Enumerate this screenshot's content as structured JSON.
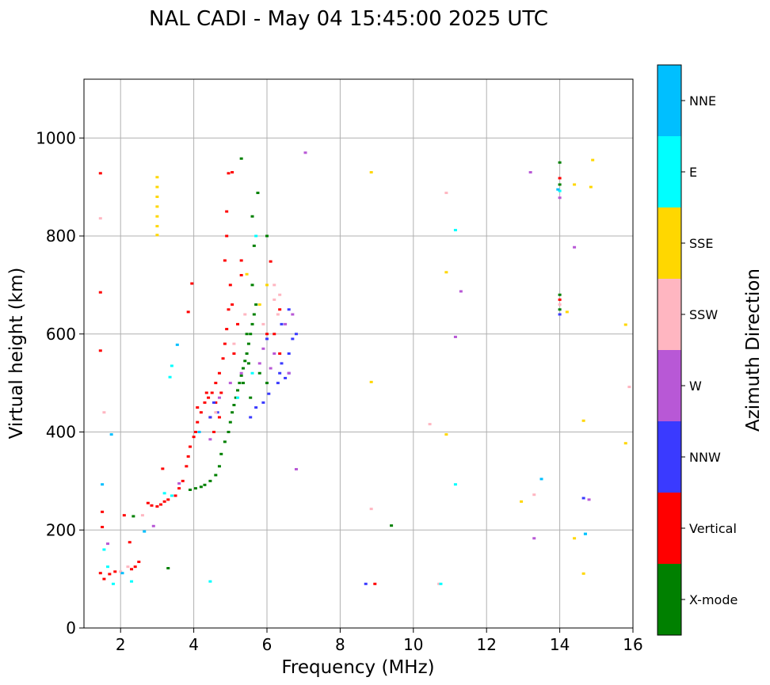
{
  "chart_data": {
    "type": "scatter",
    "title": "NAL CADI - May 04 15:45:00 2025 UTC",
    "xlabel": "Frequency (MHz)",
    "ylabel": "Virtual height (km)",
    "xlim": [
      1,
      16
    ],
    "ylim": [
      0,
      1120
    ],
    "xticks": [
      2,
      4,
      6,
      8,
      10,
      12,
      14,
      16
    ],
    "yticks": [
      0,
      200,
      400,
      600,
      800,
      1000
    ],
    "grid": true,
    "colorbar": {
      "label": "Azimuth Direction",
      "categories": [
        {
          "name": "X-mode",
          "color": "#008000"
        },
        {
          "name": "Vertical",
          "color": "#ff0000"
        },
        {
          "name": "NNW",
          "color": "#3a3aff"
        },
        {
          "name": "W",
          "color": "#b858d6"
        },
        {
          "name": "SSW",
          "color": "#ffb6c1"
        },
        {
          "name": "SSE",
          "color": "#ffd700"
        },
        {
          "name": "E",
          "color": "#00ffff"
        },
        {
          "name": "NNE",
          "color": "#00bfff"
        }
      ]
    },
    "series": [
      {
        "name": "X-mode",
        "color": "#008000",
        "points": [
          [
            3.3,
            122
          ],
          [
            3.9,
            282
          ],
          [
            4.05,
            285
          ],
          [
            4.2,
            288
          ],
          [
            4.3,
            292
          ],
          [
            4.45,
            300
          ],
          [
            4.6,
            312
          ],
          [
            4.7,
            330
          ],
          [
            4.75,
            355
          ],
          [
            4.85,
            380
          ],
          [
            4.95,
            400
          ],
          [
            5.0,
            420
          ],
          [
            5.05,
            440
          ],
          [
            5.1,
            455
          ],
          [
            5.15,
            470
          ],
          [
            5.2,
            485
          ],
          [
            5.25,
            500
          ],
          [
            5.3,
            515
          ],
          [
            5.35,
            530
          ],
          [
            5.4,
            545
          ],
          [
            5.45,
            560
          ],
          [
            5.5,
            580
          ],
          [
            5.55,
            600
          ],
          [
            5.6,
            620
          ],
          [
            5.65,
            640
          ],
          [
            5.7,
            660
          ],
          [
            5.45,
            600
          ],
          [
            5.5,
            540
          ],
          [
            5.6,
            700
          ],
          [
            5.65,
            780
          ],
          [
            5.6,
            840
          ],
          [
            5.75,
            888
          ],
          [
            6.0,
            800
          ],
          [
            5.3,
            958
          ],
          [
            6.0,
            500
          ],
          [
            5.55,
            470
          ],
          [
            5.8,
            520
          ],
          [
            5.35,
            500
          ],
          [
            9.4,
            209
          ],
          [
            2.35,
            228
          ],
          [
            14.0,
            950
          ],
          [
            14.0,
            905
          ],
          [
            14.0,
            650
          ],
          [
            14.0,
            680
          ]
        ]
      },
      {
        "name": "Vertical",
        "color": "#ff0000",
        "points": [
          [
            1.45,
            928
          ],
          [
            1.45,
            685
          ],
          [
            1.45,
            566
          ],
          [
            1.5,
            237
          ],
          [
            1.5,
            206
          ],
          [
            1.45,
            112
          ],
          [
            1.55,
            100
          ],
          [
            1.7,
            110
          ],
          [
            1.85,
            115
          ],
          [
            2.3,
            120
          ],
          [
            2.4,
            125
          ],
          [
            2.5,
            135
          ],
          [
            2.75,
            255
          ],
          [
            2.85,
            250
          ],
          [
            3.0,
            248
          ],
          [
            3.1,
            252
          ],
          [
            3.2,
            258
          ],
          [
            3.3,
            262
          ],
          [
            3.5,
            270
          ],
          [
            3.6,
            285
          ],
          [
            3.7,
            300
          ],
          [
            3.8,
            330
          ],
          [
            3.85,
            350
          ],
          [
            3.9,
            370
          ],
          [
            4.0,
            390
          ],
          [
            4.05,
            400
          ],
          [
            4.1,
            420
          ],
          [
            4.2,
            440
          ],
          [
            4.3,
            460
          ],
          [
            4.4,
            470
          ],
          [
            4.5,
            480
          ],
          [
            4.6,
            500
          ],
          [
            4.7,
            520
          ],
          [
            4.8,
            550
          ],
          [
            4.85,
            580
          ],
          [
            4.9,
            610
          ],
          [
            4.95,
            650
          ],
          [
            5.0,
            700
          ],
          [
            4.85,
            750
          ],
          [
            4.9,
            800
          ],
          [
            4.9,
            850
          ],
          [
            4.95,
            928
          ],
          [
            5.05,
            930
          ],
          [
            3.95,
            703
          ],
          [
            3.85,
            645
          ],
          [
            3.15,
            325
          ],
          [
            2.25,
            175
          ],
          [
            4.6,
            460
          ],
          [
            4.45,
            430
          ],
          [
            4.7,
            430
          ],
          [
            4.75,
            480
          ],
          [
            5.1,
            560
          ],
          [
            5.2,
            620
          ],
          [
            5.05,
            660
          ],
          [
            5.3,
            720
          ],
          [
            6.1,
            748
          ],
          [
            6.35,
            650
          ],
          [
            6.2,
            600
          ],
          [
            4.55,
            400
          ],
          [
            4.35,
            480
          ],
          [
            4.1,
            450
          ],
          [
            5.3,
            750
          ],
          [
            6.0,
            600
          ],
          [
            6.35,
            560
          ],
          [
            14.0,
            918
          ],
          [
            14.0,
            670
          ],
          [
            8.95,
            90
          ],
          [
            2.1,
            230
          ]
        ]
      },
      {
        "name": "NNW",
        "color": "#3a3aff",
        "points": [
          [
            6.3,
            500
          ],
          [
            6.35,
            520
          ],
          [
            6.4,
            540
          ],
          [
            6.5,
            510
          ],
          [
            6.6,
            520
          ],
          [
            6.6,
            560
          ],
          [
            6.7,
            590
          ],
          [
            6.8,
            600
          ],
          [
            6.4,
            620
          ],
          [
            6.6,
            650
          ],
          [
            6.0,
            590
          ],
          [
            5.9,
            460
          ],
          [
            5.7,
            450
          ],
          [
            5.55,
            430
          ],
          [
            4.45,
            430
          ],
          [
            4.55,
            460
          ],
          [
            4.65,
            440
          ],
          [
            6.05,
            478
          ],
          [
            8.7,
            90
          ],
          [
            14.65,
            265
          ],
          [
            14.0,
            640
          ]
        ]
      },
      {
        "name": "W",
        "color": "#b858d6",
        "points": [
          [
            1.65,
            172
          ],
          [
            2.9,
            208
          ],
          [
            3.6,
            295
          ],
          [
            4.45,
            385
          ],
          [
            4.7,
            470
          ],
          [
            5.0,
            500
          ],
          [
            5.3,
            520
          ],
          [
            5.8,
            540
          ],
          [
            5.9,
            570
          ],
          [
            6.1,
            530
          ],
          [
            6.2,
            560
          ],
          [
            6.5,
            620
          ],
          [
            6.7,
            640
          ],
          [
            6.6,
            520
          ],
          [
            7.05,
            970
          ],
          [
            6.8,
            324
          ],
          [
            13.2,
            930
          ],
          [
            11.3,
            687
          ],
          [
            11.15,
            594
          ],
          [
            13.3,
            183
          ],
          [
            14.4,
            777
          ],
          [
            14.8,
            262
          ],
          [
            14.0,
            878
          ]
        ]
      },
      {
        "name": "SSW",
        "color": "#ffb6c1",
        "points": [
          [
            1.45,
            836
          ],
          [
            1.55,
            440
          ],
          [
            2.0,
            115
          ],
          [
            2.2,
            125
          ],
          [
            2.6,
            230
          ],
          [
            4.6,
            440
          ],
          [
            5.1,
            580
          ],
          [
            5.4,
            640
          ],
          [
            6.2,
            670
          ],
          [
            6.35,
            680
          ],
          [
            6.3,
            640
          ],
          [
            6.2,
            700
          ],
          [
            5.9,
            620
          ],
          [
            8.85,
            243
          ],
          [
            10.45,
            416
          ],
          [
            10.7,
            90
          ],
          [
            10.9,
            888
          ],
          [
            13.3,
            272
          ],
          [
            15.9,
            492
          ],
          [
            14.0,
            660
          ]
        ]
      },
      {
        "name": "SSE",
        "color": "#ffd700",
        "points": [
          [
            3.0,
            920
          ],
          [
            3.0,
            900
          ],
          [
            3.0,
            880
          ],
          [
            3.0,
            860
          ],
          [
            3.0,
            840
          ],
          [
            3.0,
            820
          ],
          [
            3.0,
            802
          ],
          [
            5.45,
            722
          ],
          [
            6.0,
            700
          ],
          [
            5.8,
            660
          ],
          [
            8.85,
            930
          ],
          [
            8.85,
            502
          ],
          [
            10.9,
            726
          ],
          [
            10.9,
            395
          ],
          [
            12.95,
            258
          ],
          [
            14.2,
            645
          ],
          [
            14.4,
            905
          ],
          [
            14.4,
            183
          ],
          [
            14.65,
            423
          ],
          [
            14.65,
            111
          ],
          [
            14.85,
            900
          ],
          [
            14.9,
            955
          ],
          [
            15.8,
            619
          ],
          [
            15.8,
            377
          ]
        ]
      },
      {
        "name": "E",
        "color": "#00ffff",
        "points": [
          [
            1.55,
            160
          ],
          [
            1.65,
            125
          ],
          [
            1.8,
            90
          ],
          [
            2.3,
            95
          ],
          [
            3.35,
            512
          ],
          [
            3.4,
            535
          ],
          [
            3.2,
            275
          ],
          [
            3.4,
            270
          ],
          [
            4.45,
            95
          ],
          [
            5.2,
            470
          ],
          [
            5.6,
            520
          ],
          [
            5.7,
            800
          ],
          [
            11.15,
            293
          ],
          [
            11.15,
            812
          ],
          [
            10.75,
            90
          ],
          [
            14.7,
            192
          ],
          [
            14.0,
            892
          ]
        ]
      },
      {
        "name": "NNE",
        "color": "#00bfff",
        "points": [
          [
            1.5,
            293
          ],
          [
            1.75,
            395
          ],
          [
            2.05,
            112
          ],
          [
            2.65,
            197
          ],
          [
            3.55,
            578
          ],
          [
            4.15,
            400
          ],
          [
            13.5,
            304
          ],
          [
            14.7,
            192
          ],
          [
            13.95,
            895
          ]
        ]
      }
    ]
  }
}
